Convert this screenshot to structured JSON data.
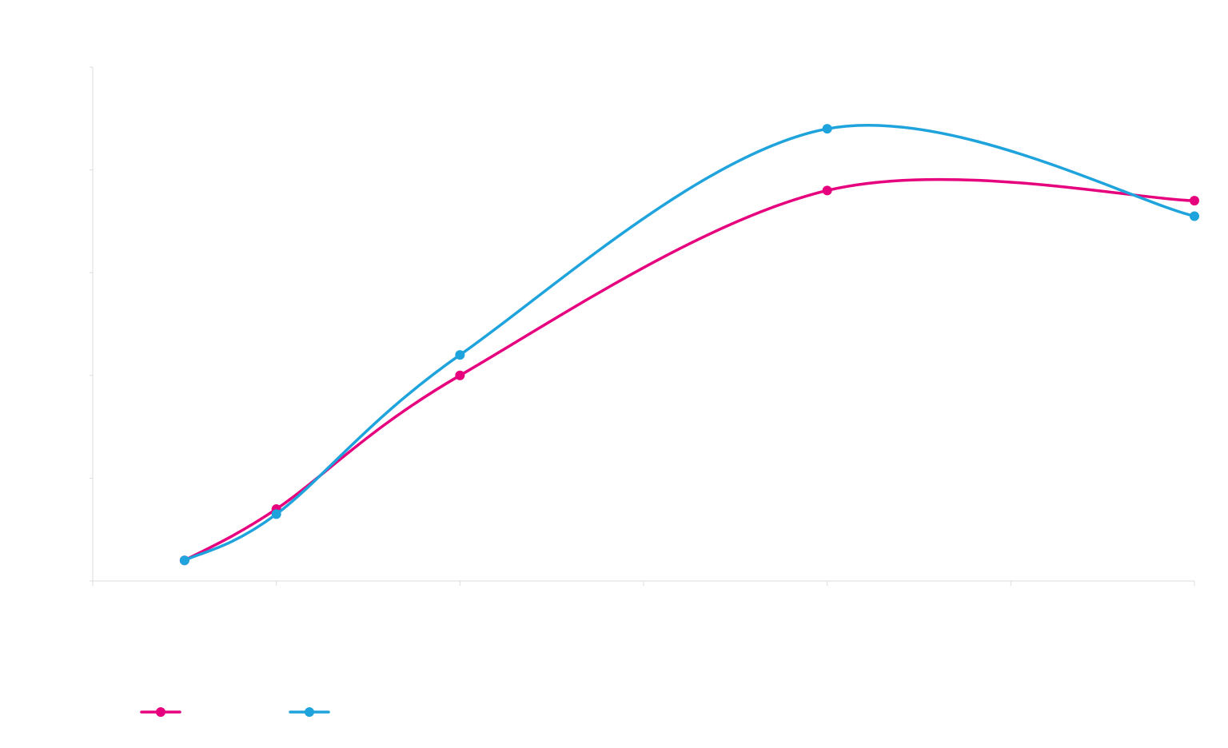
{
  "chart_data": {
    "type": "line",
    "title": "",
    "xlabel": "",
    "ylabel": "",
    "xlim": [
      -2.5,
      9.5
    ],
    "ylim": [
      0,
      10
    ],
    "x_ticks": [
      -2.5,
      -0.5,
      1.5,
      3.5,
      5.5,
      7.5,
      9.5
    ],
    "y_ticks": [
      0,
      2,
      4,
      6,
      8,
      10
    ],
    "grid": false,
    "smooth": true,
    "legend": {
      "position": "bottom-left"
    },
    "series": [
      {
        "name": "",
        "color": "#e6007e",
        "x": [
          -1.5,
          -0.5,
          1.5,
          5.5,
          9.5
        ],
        "y": [
          0.4,
          1.4,
          4.0,
          7.6,
          7.4
        ]
      },
      {
        "name": "",
        "color": "#1fa3dc",
        "x": [
          -1.5,
          -0.5,
          1.5,
          5.5,
          9.5
        ],
        "y": [
          0.4,
          1.3,
          4.4,
          8.8,
          7.1
        ]
      }
    ]
  }
}
